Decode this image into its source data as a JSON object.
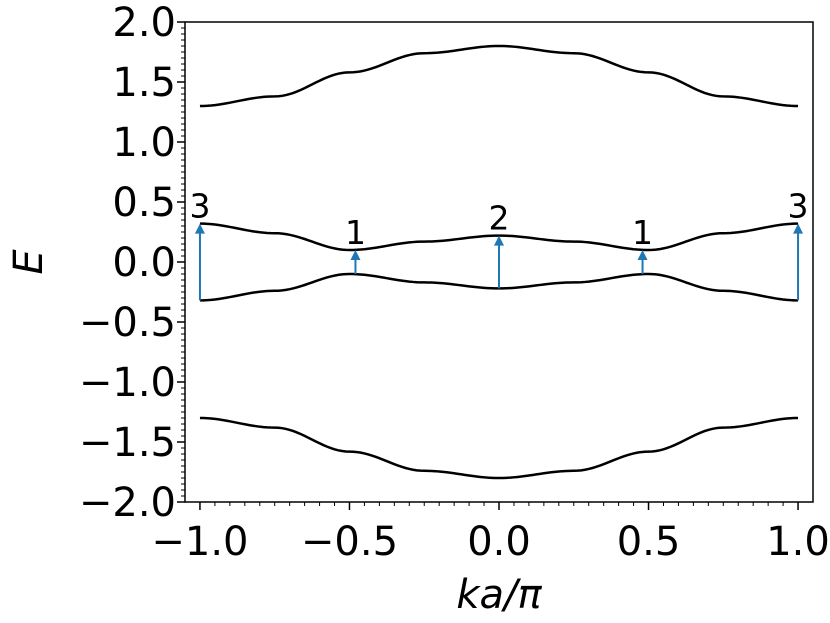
{
  "chart_data": {
    "type": "line",
    "xlabel": "ka/π",
    "ylabel": "E",
    "xlim": [
      -1.05,
      1.05
    ],
    "ylim": [
      -2.0,
      2.0
    ],
    "x_ticks": [
      -1.0,
      -0.5,
      0.0,
      0.5,
      1.0
    ],
    "x_tick_labels": [
      "−1.0",
      "−0.5",
      "0.0",
      "0.5",
      "1.0"
    ],
    "y_ticks": [
      2.0,
      1.5,
      1.0,
      0.5,
      0.0,
      -0.5,
      -1.0,
      -1.5,
      -2.0
    ],
    "y_tick_labels": [
      "2.0",
      "1.5",
      "1.0",
      "0.5",
      "0.0",
      "−0.5",
      "−1.0",
      "−1.5",
      "−2.0"
    ],
    "grid": false,
    "line_color": "#000000",
    "arrow_color": "#1f77b4",
    "series": [
      {
        "x": [
          -1.0,
          -0.75,
          -0.5,
          -0.25,
          0.0,
          0.25,
          0.5,
          0.75,
          1.0
        ],
        "y": [
          1.3,
          1.38,
          1.58,
          1.74,
          1.8,
          1.74,
          1.58,
          1.38,
          1.3
        ]
      },
      {
        "x": [
          -1.0,
          -0.75,
          -0.5,
          -0.25,
          0.0,
          0.25,
          0.5,
          0.75,
          1.0
        ],
        "y": [
          0.32,
          0.24,
          0.1,
          0.17,
          0.22,
          0.17,
          0.1,
          0.24,
          0.32
        ]
      },
      {
        "x": [
          -1.0,
          -0.75,
          -0.5,
          -0.25,
          0.0,
          0.25,
          0.5,
          0.75,
          1.0
        ],
        "y": [
          -0.32,
          -0.24,
          -0.1,
          -0.17,
          -0.22,
          -0.17,
          -0.1,
          -0.24,
          -0.32
        ]
      },
      {
        "x": [
          -1.0,
          -0.75,
          -0.5,
          -0.25,
          0.0,
          0.25,
          0.5,
          0.75,
          1.0
        ],
        "y": [
          -1.3,
          -1.38,
          -1.58,
          -1.74,
          -1.8,
          -1.74,
          -1.58,
          -1.38,
          -1.3
        ]
      }
    ],
    "annotations": [
      {
        "x": -1.0,
        "y_from": -0.32,
        "y_to": 0.32,
        "label": "3"
      },
      {
        "x": -0.48,
        "y_from": -0.1,
        "y_to": 0.1,
        "label": "1"
      },
      {
        "x": 0.0,
        "y_from": -0.22,
        "y_to": 0.22,
        "label": "2"
      },
      {
        "x": 0.48,
        "y_from": -0.1,
        "y_to": 0.1,
        "label": "1"
      },
      {
        "x": 1.0,
        "y_from": -0.32,
        "y_to": 0.32,
        "label": "3"
      }
    ]
  }
}
